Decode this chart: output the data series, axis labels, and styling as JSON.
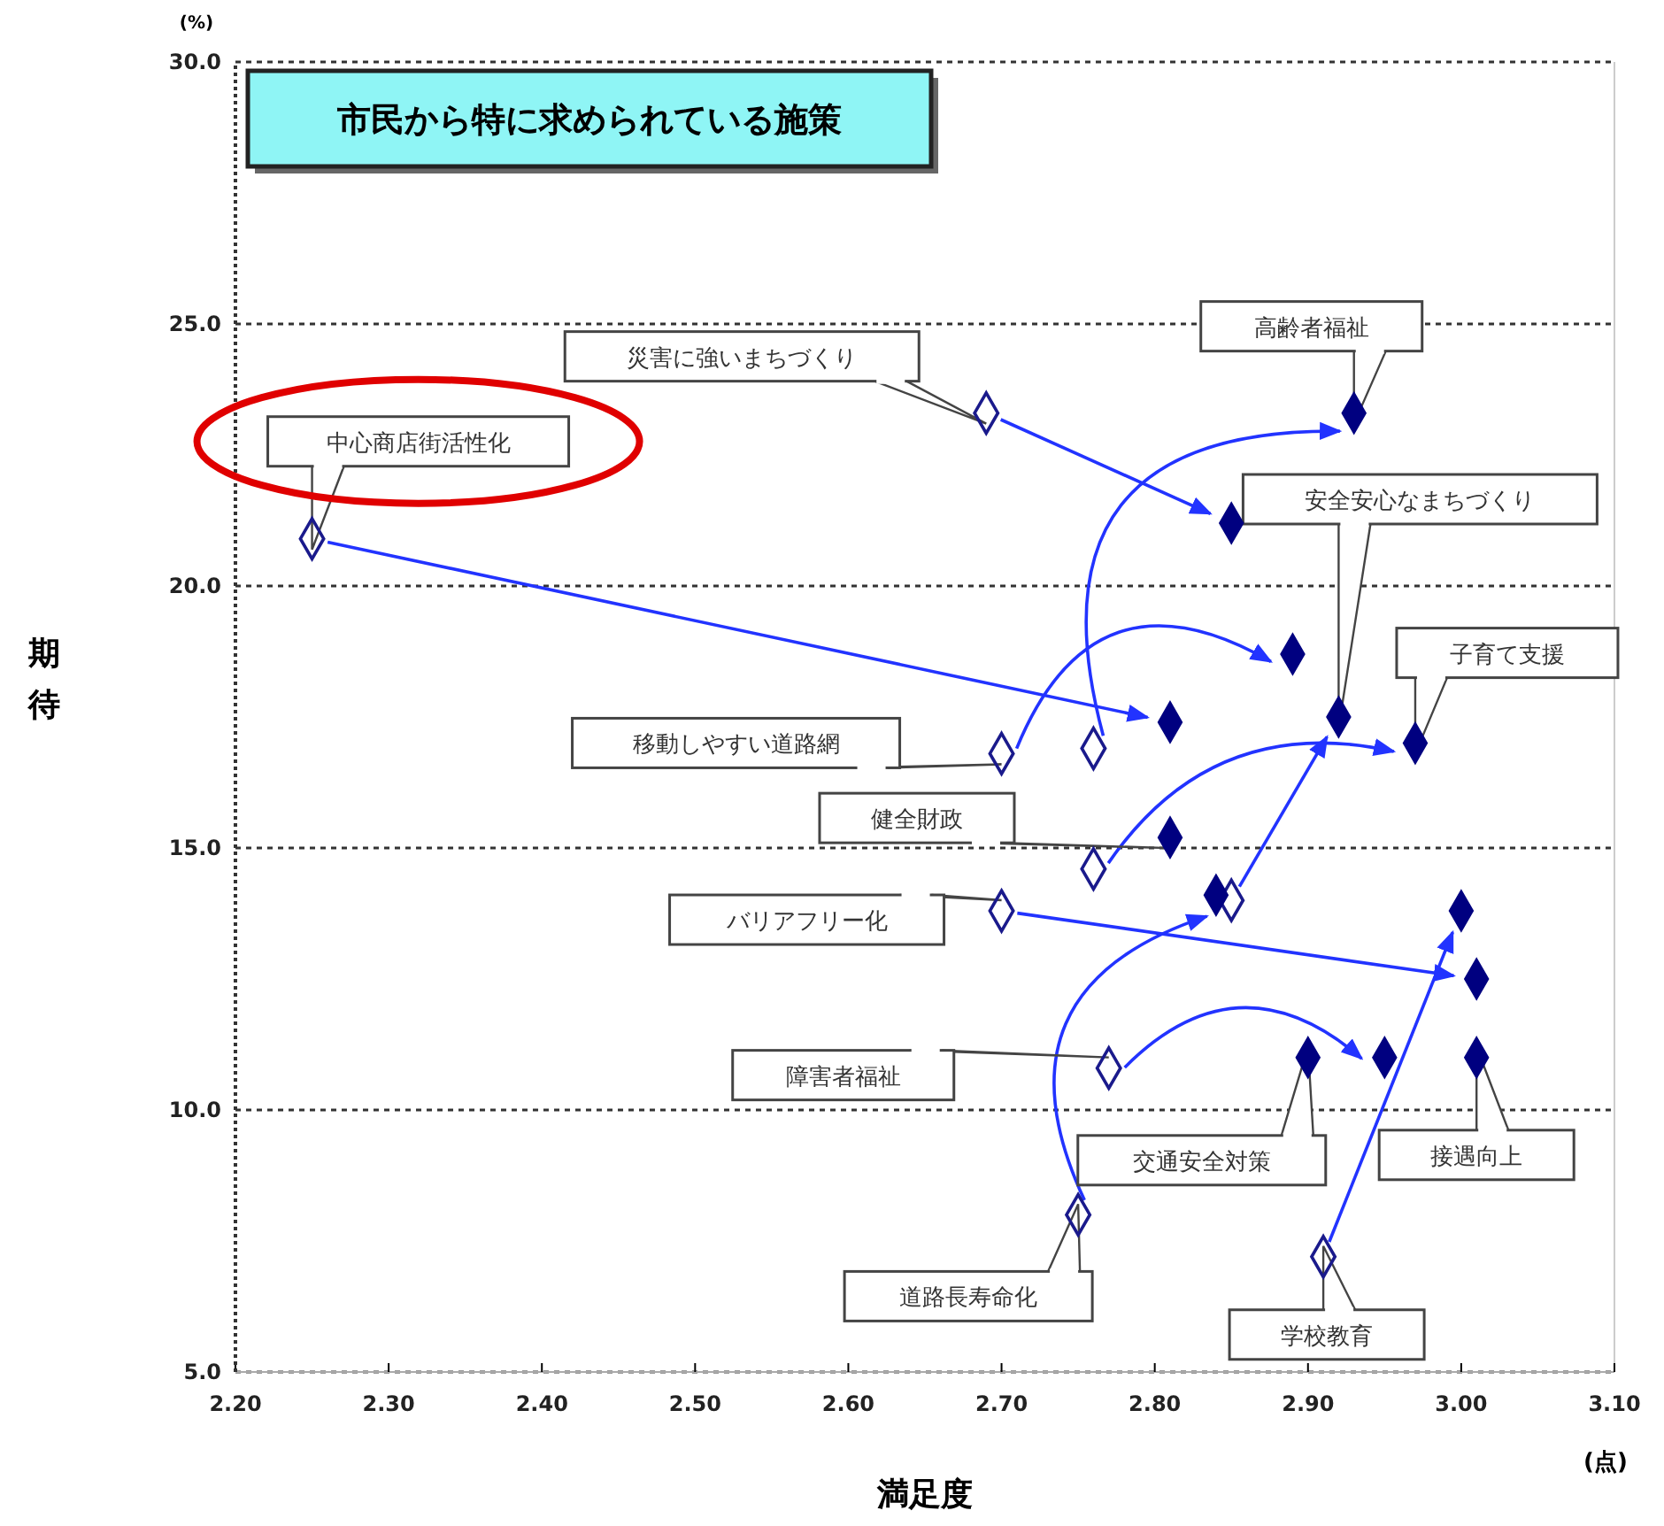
{
  "chart_data": {
    "type": "scatter",
    "title": "市民から特に求められている施策",
    "xlabel": "満足度",
    "ylabel": "期待",
    "xlim": [
      2.2,
      3.1
    ],
    "ylim": [
      5,
      30
    ],
    "xticks": [
      {
        "value": 2.2,
        "label": "2.20"
      },
      {
        "value": 2.3,
        "label": "2.30"
      },
      {
        "value": 2.4,
        "label": "2.40"
      },
      {
        "value": 2.5,
        "label": "2.50"
      },
      {
        "value": 2.6,
        "label": "2.60"
      },
      {
        "value": 2.7,
        "label": "2.70"
      },
      {
        "value": 2.8,
        "label": "2.80"
      },
      {
        "value": 2.9,
        "label": "2.90"
      },
      {
        "value": 3.0,
        "label": "3.00"
      },
      {
        "value": 3.1,
        "label": "3.10"
      }
    ],
    "yticks": [
      {
        "value": 5,
        "label": "5.0"
      },
      {
        "value": 10,
        "label": "10.0"
      },
      {
        "value": 15,
        "label": "15.0"
      },
      {
        "value": 20,
        "label": "20.0"
      },
      {
        "value": 25,
        "label": "25.0"
      },
      {
        "value": 30,
        "label": "30.0"
      }
    ],
    "grid": "y",
    "marker": "diamond",
    "series": [
      {
        "color": "#1a1a8c",
        "x": [
          2.25,
          2.69,
          2.7,
          2.76,
          2.76,
          2.85,
          2.75,
          2.7,
          2.77,
          2.91
        ],
        "values": [
          20.9,
          23.3,
          16.8,
          16.9,
          14.6,
          14.0,
          8.0,
          13.8,
          10.8,
          7.2
        ]
      },
      {
        "color": "#000080",
        "x": [
          2.81,
          2.85,
          2.89,
          2.93,
          2.97,
          2.92,
          2.84,
          3.01,
          2.95,
          3.0,
          2.81,
          2.9,
          3.01
        ],
        "values": [
          17.4,
          21.2,
          18.7,
          23.3,
          17.0,
          17.5,
          14.1,
          12.5,
          11.0,
          13.8,
          15.2,
          11.0,
          11.0
        ]
      }
    ],
    "annotations": [
      "(%)",
      "(点)",
      {
        "text": "中心商店街活性化",
        "x": 2.25,
        "y": 20.9
      },
      {
        "text": "災害に強いまちづくり",
        "x": 2.69,
        "y": 23.3
      },
      {
        "text": "高齢者福祉",
        "x": 2.93,
        "y": 23.3
      },
      {
        "text": "安全安心なまちづくり",
        "x": 2.92,
        "y": 17.5
      },
      {
        "text": "子育て支援",
        "x": 2.97,
        "y": 17.0
      },
      {
        "text": "移動しやすい道路網",
        "x": 2.7,
        "y": 16.8
      },
      {
        "text": "健全財政",
        "x": 2.81,
        "y": 15.2
      },
      {
        "text": "バリアフリー化",
        "x": 2.7,
        "y": 13.8
      },
      {
        "text": "障害者福祉",
        "x": 2.77,
        "y": 10.8
      },
      {
        "text": "交通安全対策",
        "x": 2.9,
        "y": 11.0
      },
      {
        "text": "接遇向上",
        "x": 3.01,
        "y": 11.0
      },
      {
        "text": "道路長寿命化",
        "x": 2.75,
        "y": 8.0
      },
      {
        "text": "学校教育",
        "x": 2.91,
        "y": 7.2
      }
    ]
  }
}
